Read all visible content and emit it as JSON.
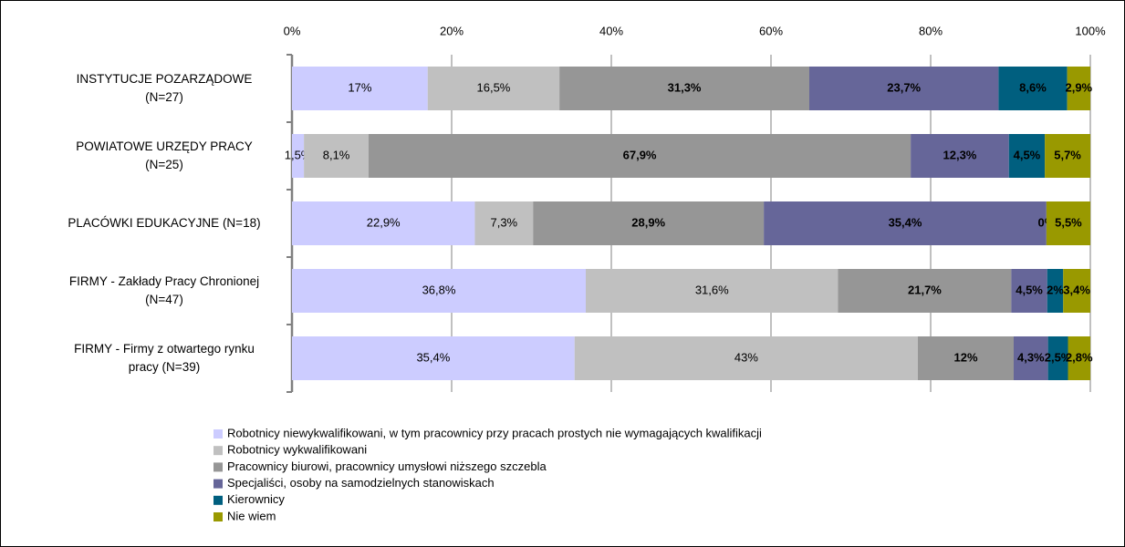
{
  "chart_data": {
    "type": "stacked_barh",
    "categories": [
      "INSTYTUCJE POZARZĄDOWE\n(N=27)",
      "POWIATOWE URZĘDY PRACY\n(N=25)",
      "PLACÓWKI EDUKACYJNE (N=18)",
      "FIRMY - Zakłady Pracy Chronionej\n(N=47)",
      "FIRMY - Firmy z otwartego rynku\npracy (N=39)"
    ],
    "series": [
      {
        "name": "Robotnicy niewykwalifikowani, w tym pracownicy przy pracach prostych nie wymagających kwalifikacji",
        "color": "#ccccff",
        "label_bold": false,
        "values": [
          17,
          1.5,
          22.9,
          36.8,
          35.4
        ],
        "value_labels": [
          "17%",
          "1,5%",
          "22,9%",
          "36,8%",
          "35,4%"
        ]
      },
      {
        "name": "Robotnicy wykwalifikowani",
        "color": "#c0c0c0",
        "label_bold": false,
        "values": [
          16.5,
          8.1,
          7.3,
          31.6,
          43
        ],
        "value_labels": [
          "16,5%",
          "8,1%",
          "7,3%",
          "31,6%",
          "43%"
        ]
      },
      {
        "name": "Pracownicy biurowi, pracownicy umysłowi niższego szczebla",
        "color": "#969696",
        "label_bold": true,
        "values": [
          31.3,
          67.9,
          28.9,
          21.7,
          12
        ],
        "value_labels": [
          "31,3%",
          "67,9%",
          "28,9%",
          "21,7%",
          "12%"
        ]
      },
      {
        "name": "Specjaliści, osoby na samodzielnych stanowiskach",
        "color": "#666699",
        "label_bold": true,
        "values": [
          23.7,
          12.3,
          35.4,
          4.5,
          4.3
        ],
        "value_labels": [
          "23,7%",
          "12,3%",
          "35,4%",
          "4,5%",
          "4,3%"
        ]
      },
      {
        "name": "Kierownicy",
        "color": "#005f7f",
        "label_bold": true,
        "values": [
          8.6,
          4.5,
          0,
          2,
          2.5
        ],
        "value_labels": [
          "8,6%",
          "4,5%",
          "0%",
          "2%",
          "2,5%"
        ]
      },
      {
        "name": "Nie wiem",
        "color": "#999900",
        "label_bold": true,
        "values": [
          2.9,
          5.7,
          5.5,
          3.4,
          2.8
        ],
        "value_labels": [
          "2,9%",
          "5,7%",
          "5,5%",
          "3,4%",
          "2,8%"
        ]
      }
    ],
    "xlim": [
      0,
      100
    ],
    "xticks": [
      {
        "value": 0,
        "label": "0%"
      },
      {
        "value": 20,
        "label": "20%"
      },
      {
        "value": 40,
        "label": "40%"
      },
      {
        "value": 60,
        "label": "60%"
      },
      {
        "value": 80,
        "label": "80%"
      },
      {
        "value": 100,
        "label": "100%"
      }
    ],
    "grid": true
  }
}
